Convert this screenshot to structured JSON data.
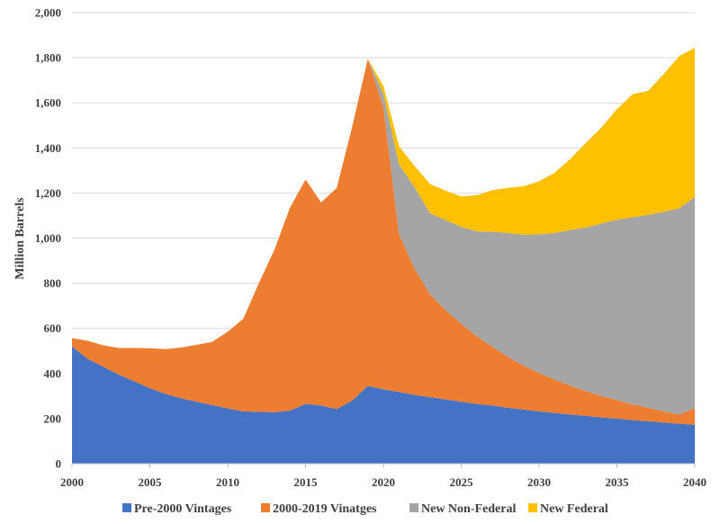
{
  "chart_data": {
    "type": "area",
    "stacked": true,
    "ylabel": "Million Barrels",
    "xlabel": "",
    "ylim": [
      0,
      2000
    ],
    "yticks": [
      0,
      200,
      400,
      600,
      800,
      1000,
      1200,
      1400,
      1600,
      1800,
      2000
    ],
    "ytick_labels": [
      "0",
      "200",
      "400",
      "600",
      "800",
      "1,000",
      "1,200",
      "1,400",
      "1,600",
      "1,800",
      "2,000"
    ],
    "xlim": [
      2000,
      2040
    ],
    "xticks": [
      2000,
      2005,
      2010,
      2015,
      2020,
      2025,
      2030,
      2035,
      2040
    ],
    "xtick_labels": [
      "2000",
      "2005",
      "2010",
      "2015",
      "2020",
      "2025",
      "2030",
      "2035",
      "2040"
    ],
    "grid": true,
    "legend_position": "bottom",
    "x": [
      2000,
      2001,
      2002,
      2003,
      2004,
      2005,
      2006,
      2007,
      2008,
      2009,
      2010,
      2011,
      2012,
      2013,
      2014,
      2015,
      2016,
      2017,
      2018,
      2019,
      2020,
      2021,
      2022,
      2023,
      2024,
      2025,
      2026,
      2027,
      2028,
      2029,
      2030,
      2031,
      2032,
      2033,
      2034,
      2035,
      2036,
      2037,
      2038,
      2039,
      2040
    ],
    "series": [
      {
        "name": "Pre-2000 Vintages",
        "color": "#4472C4",
        "values": [
          520,
          465,
          430,
          395,
          365,
          335,
          310,
          290,
          275,
          260,
          245,
          232,
          230,
          228,
          235,
          265,
          258,
          242,
          280,
          345,
          330,
          318,
          305,
          295,
          285,
          275,
          265,
          258,
          248,
          240,
          232,
          225,
          218,
          212,
          205,
          200,
          193,
          188,
          182,
          177,
          172
        ]
      },
      {
        "name": "2000-2019 Vinatges",
        "color": "#ED7D31",
        "values": [
          37,
          80,
          95,
          118,
          148,
          177,
          198,
          225,
          252,
          280,
          340,
          410,
          570,
          720,
          900,
          995,
          900,
          980,
          1215,
          1450,
          1250,
          700,
          560,
          455,
          395,
          345,
          300,
          260,
          225,
          195,
          170,
          148,
          128,
          110,
          95,
          82,
          70,
          60,
          50,
          40,
          75
        ]
      },
      {
        "name": "New Non-Federal",
        "color": "#A5A5A5",
        "values": [
          0,
          0,
          0,
          0,
          0,
          0,
          0,
          0,
          0,
          0,
          0,
          0,
          0,
          0,
          0,
          0,
          0,
          0,
          0,
          0,
          60,
          310,
          360,
          360,
          400,
          430,
          465,
          510,
          550,
          580,
          615,
          650,
          690,
          725,
          765,
          800,
          830,
          855,
          885,
          915,
          935
        ]
      },
      {
        "name": "New Federal",
        "color": "#FFC000",
        "values": [
          0,
          0,
          0,
          0,
          0,
          0,
          0,
          0,
          0,
          0,
          0,
          0,
          0,
          0,
          0,
          0,
          0,
          0,
          0,
          0,
          35,
          80,
          95,
          130,
          130,
          135,
          160,
          185,
          200,
          215,
          235,
          267,
          315,
          375,
          425,
          490,
          545,
          550,
          610,
          675,
          662
        ]
      }
    ]
  }
}
